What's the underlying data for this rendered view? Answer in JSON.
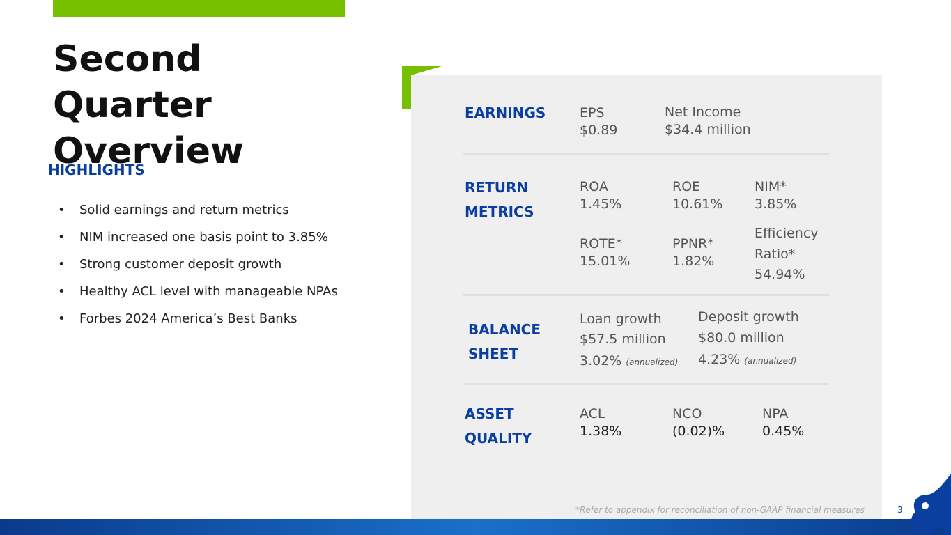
{
  "slide": {
    "title": "Second Quarter Overview",
    "highlights": {
      "heading": "HIGHLIGHTS",
      "items": [
        "Solid earnings and return metrics",
        "NIM increased one basis point to 3.85%",
        "Strong customer deposit growth",
        "Healthy ACL level with manageable NPAs",
        "Forbes 2024 America’s Best Banks"
      ]
    },
    "sections": [
      {
        "label": "EARNINGS",
        "metrics": [
          {
            "name": "EPS",
            "value": "$0.89"
          },
          {
            "name": "Net Income",
            "value": "$34.4 million"
          }
        ]
      },
      {
        "label": "RETURN METRICS",
        "metrics": [
          {
            "name": "ROA",
            "value": "1.45%"
          },
          {
            "name": "ROE",
            "value": "10.61%"
          },
          {
            "name": "NIM*",
            "value": "3.85%"
          },
          {
            "name": "ROTE*",
            "value": "15.01%"
          },
          {
            "name": "PPNR*",
            "value": "1.82%"
          },
          {
            "name": "Efficiency Ratio*",
            "value": "54.94%"
          }
        ]
      },
      {
        "label": "BALANCE SHEET",
        "metrics": [
          {
            "name": "Loan growth",
            "value": "$57.5 million",
            "rate": "3.02%",
            "note": "(annualized)"
          },
          {
            "name": "Deposit growth",
            "value": "$80.0 million",
            "rate": "4.23%",
            "note": "(annualized)"
          }
        ]
      },
      {
        "label": "ASSET QUALITY",
        "metrics": [
          {
            "name": "ACL",
            "value": "1.38%"
          },
          {
            "name": "NCO",
            "value": "(0.02)%"
          },
          {
            "name": "NPA",
            "value": "0.45%"
          }
        ]
      }
    ],
    "footnote": "*Refer to appendix for reconciliation of non-GAAP financial measures",
    "page_number": "3"
  }
}
